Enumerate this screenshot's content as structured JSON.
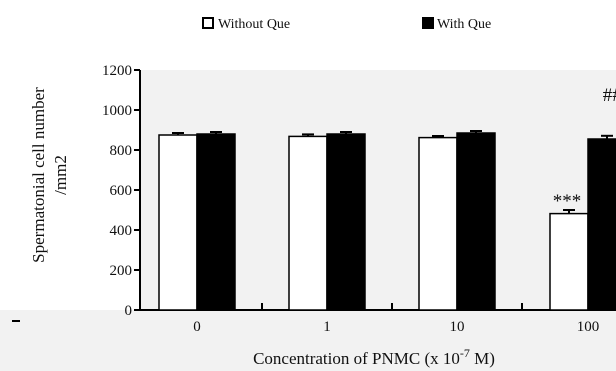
{
  "chart_data": {
    "type": "bar",
    "title": "",
    "xlabel": "Concentration of PNMC (x 10",
    "xlabel_sup": "-7",
    "xlabel_end": " M)",
    "ylabel_line1": "Spermatonial cell number",
    "ylabel_line2": "/mm2",
    "categories": [
      "0",
      "1",
      "10",
      "100"
    ],
    "ylim": [
      0,
      1200
    ],
    "yticks": [
      "0",
      "200",
      "400",
      "600",
      "800",
      "1000",
      "1200"
    ],
    "series": [
      {
        "name": "Without Que",
        "color": "#ffffff",
        "values": [
          875,
          868,
          862,
          482
        ],
        "errors": [
          10,
          10,
          8,
          18
        ]
      },
      {
        "name": "With Que",
        "color": "#000000",
        "values": [
          880,
          880,
          885,
          855
        ],
        "errors": [
          10,
          10,
          10,
          16
        ]
      }
    ],
    "annotations": [
      {
        "text": "***",
        "category": "100",
        "series": "Without Que"
      },
      {
        "text": "###",
        "category": "100",
        "series": "With Que"
      }
    ],
    "legend_position": "top",
    "grid": false,
    "plot_background": "#f2f2f2"
  }
}
